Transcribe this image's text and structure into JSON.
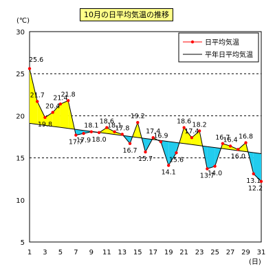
{
  "title": "10月の日平均気温の推移",
  "chart_data": {
    "type": "line",
    "ylabel": "(℃)",
    "xlabel": "(日)",
    "ylim": [
      5,
      30
    ],
    "xlim": [
      1,
      31
    ],
    "yticks": [
      5,
      10,
      15,
      20,
      25,
      30
    ],
    "xticks": [
      1,
      3,
      5,
      7,
      9,
      11,
      13,
      15,
      17,
      19,
      21,
      23,
      25,
      27,
      29,
      31
    ],
    "grid": "dashed horizontal at 15, 20, 25",
    "legend_position": "top-right",
    "fill_above_color": "#ffff00",
    "fill_below_color": "#22ccee",
    "x": [
      1,
      2,
      3,
      4,
      5,
      6,
      7,
      8,
      9,
      10,
      11,
      12,
      13,
      14,
      15,
      16,
      17,
      18,
      19,
      20,
      21,
      22,
      23,
      24,
      25,
      26,
      27,
      28,
      29,
      30,
      31
    ],
    "series": [
      {
        "name": "日平均気温",
        "color": "#ff0000",
        "values": [
          25.6,
          21.7,
          19.8,
          20.4,
          21.4,
          21.8,
          17.7,
          17.9,
          18.1,
          18.0,
          18.6,
          18.1,
          17.8,
          16.7,
          19.2,
          15.7,
          17.4,
          16.9,
          14.1,
          15.6,
          18.6,
          17.4,
          18.2,
          13.7,
          14.0,
          16.7,
          16.4,
          16.0,
          16.8,
          13.1,
          12.2
        ]
      },
      {
        "name": "平年日平均気温",
        "color": "#000000",
        "values": [
          19.1,
          18.98,
          18.86,
          18.74,
          18.62,
          18.5,
          18.38,
          18.26,
          18.14,
          18.02,
          17.9,
          17.78,
          17.66,
          17.54,
          17.42,
          17.3,
          17.18,
          17.06,
          16.94,
          16.82,
          16.7,
          16.58,
          16.46,
          16.34,
          16.22,
          16.1,
          15.98,
          15.86,
          15.74,
          15.62,
          15.5
        ]
      }
    ],
    "data_labels": [
      {
        "day": 1,
        "text": "25.6"
      },
      {
        "day": 2,
        "text": "21.7"
      },
      {
        "day": 3,
        "text": "19.8"
      },
      {
        "day": 4,
        "text": "20.4"
      },
      {
        "day": 5,
        "text": "21.4"
      },
      {
        "day": 6,
        "text": "21.8"
      },
      {
        "day": 7,
        "text": "17.7"
      },
      {
        "day": 8,
        "text": "17.9"
      },
      {
        "day": 9,
        "text": "18.1"
      },
      {
        "day": 10,
        "text": "18.0"
      },
      {
        "day": 11,
        "text": "18.6"
      },
      {
        "day": 12,
        "text": "18.1"
      },
      {
        "day": 13,
        "text": "17.8"
      },
      {
        "day": 14,
        "text": "16.7"
      },
      {
        "day": 15,
        "text": "19.2"
      },
      {
        "day": 16,
        "text": "15.7"
      },
      {
        "day": 17,
        "text": "17.4"
      },
      {
        "day": 18,
        "text": "16.9"
      },
      {
        "day": 19,
        "text": "14.1"
      },
      {
        "day": 20,
        "text": "15.6"
      },
      {
        "day": 21,
        "text": "18.6"
      },
      {
        "day": 22,
        "text": "17.4"
      },
      {
        "day": 23,
        "text": "18.2"
      },
      {
        "day": 24,
        "text": "13.7"
      },
      {
        "day": 25,
        "text": "14.0"
      },
      {
        "day": 26,
        "text": "16.7"
      },
      {
        "day": 27,
        "text": "16.4"
      },
      {
        "day": 28,
        "text": "16.0"
      },
      {
        "day": 29,
        "text": "16.8"
      },
      {
        "day": 30,
        "text": "13.1"
      },
      {
        "day": 31,
        "text": "12.2"
      }
    ]
  }
}
